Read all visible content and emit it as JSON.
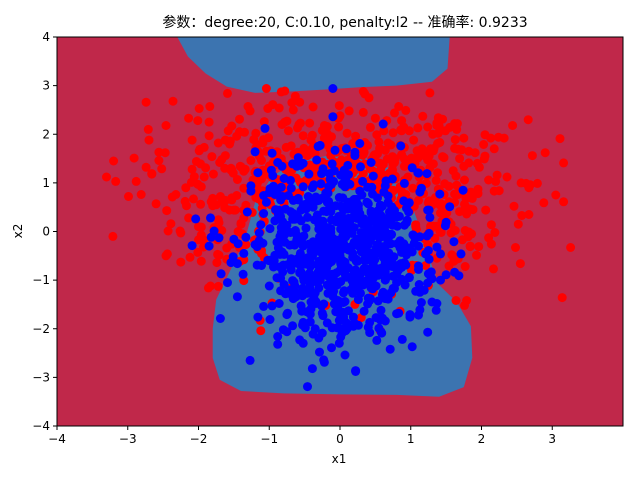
{
  "chart_data": {
    "type": "scatter",
    "title": "参数：degree:20, C:0.10, penalty:l2 -- 准确率: 0.9233",
    "xlabel": "x1",
    "ylabel": "x2",
    "xlim": [
      -4,
      4
    ],
    "ylim": [
      -4,
      4
    ],
    "x_ticks": [
      "−4",
      "−3",
      "−2",
      "−1",
      "0",
      "1",
      "2",
      "3"
    ],
    "y_ticks": [
      "−4",
      "−3",
      "−2",
      "−1",
      "0",
      "1",
      "2",
      "3",
      "4"
    ],
    "grid": false,
    "background_color": "#c0284a",
    "region_color": "#3c74b0",
    "decision_regions": [
      {
        "class": "blue",
        "name": "top-region",
        "polygon": [
          [
            -2.3,
            4.0
          ],
          [
            1.55,
            4.0
          ],
          [
            1.52,
            3.35
          ],
          [
            1.3,
            3.08
          ],
          [
            0.8,
            3.0
          ],
          [
            0.3,
            2.97
          ],
          [
            -0.2,
            2.92
          ],
          [
            -0.7,
            2.88
          ],
          [
            -1.2,
            2.85
          ],
          [
            -1.6,
            2.98
          ],
          [
            -1.9,
            3.25
          ],
          [
            -2.15,
            3.6
          ]
        ]
      },
      {
        "class": "blue",
        "name": "bottom-region",
        "polygon": [
          [
            -1.8,
            -2.0
          ],
          [
            -1.8,
            -2.6
          ],
          [
            -1.7,
            -3.05
          ],
          [
            -1.4,
            -3.28
          ],
          [
            -0.8,
            -3.33
          ],
          [
            0.0,
            -3.35
          ],
          [
            0.8,
            -3.36
          ],
          [
            1.4,
            -3.4
          ],
          [
            1.75,
            -3.2
          ],
          [
            1.87,
            -2.6
          ],
          [
            1.85,
            -1.95
          ],
          [
            1.65,
            -1.45
          ],
          [
            1.4,
            -1.1
          ],
          [
            1.25,
            -0.5
          ],
          [
            1.1,
            0.2
          ],
          [
            0.95,
            0.8
          ],
          [
            0.7,
            1.3
          ],
          [
            0.3,
            1.55
          ],
          [
            -0.2,
            1.55
          ],
          [
            -0.6,
            1.45
          ],
          [
            -0.95,
            1.15
          ],
          [
            -1.2,
            0.6
          ],
          [
            -1.35,
            -0.2
          ],
          [
            -1.55,
            -0.8
          ],
          [
            -1.75,
            -1.4
          ]
        ]
      }
    ],
    "series": [
      {
        "name": "",
        "color": "#ff0000",
        "points": []
      },
      {
        "name": "",
        "color": "#0000ff",
        "points": []
      }
    ]
  }
}
